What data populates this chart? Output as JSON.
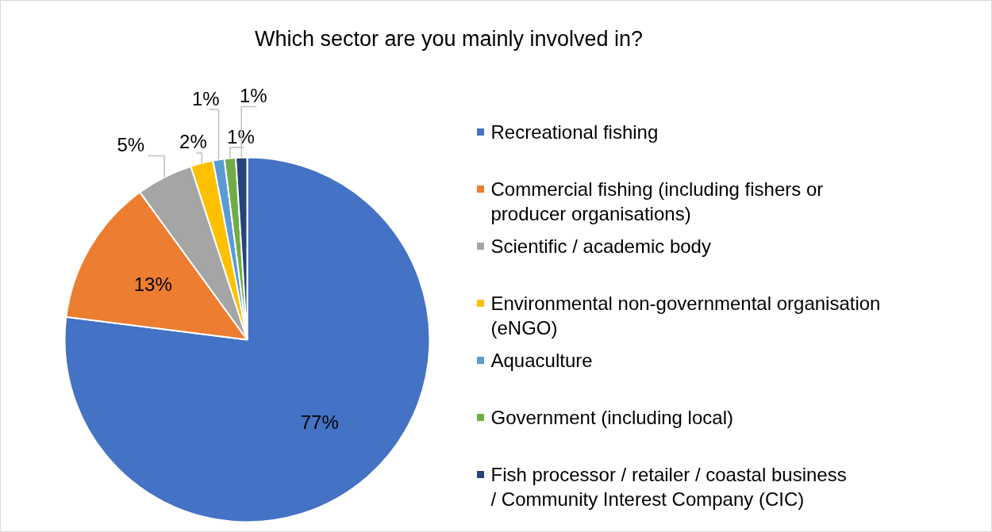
{
  "chart_data": {
    "type": "pie",
    "title": "Which sector are you mainly involved in?",
    "categories": [
      "Recreational fishing",
      "Commercial fishing (including fishers or producer organisations)",
      "Scientific / academic body",
      "Environmental non-governmental organisation (eNGO)",
      "Aquaculture",
      "Government (including local)",
      "Fish processor / retailer / coastal business / Community Interest Company (CIC)"
    ],
    "values": [
      77,
      13,
      5,
      2,
      1,
      1,
      1
    ],
    "colors": [
      "#4472c4",
      "#ed7d31",
      "#a5a5a5",
      "#ffc000",
      "#5b9bd5",
      "#70ad47",
      "#264478"
    ],
    "value_labels": [
      "77%",
      "13%",
      "5%",
      "2%",
      "1%",
      "1%",
      "1%"
    ],
    "legend": "right"
  }
}
